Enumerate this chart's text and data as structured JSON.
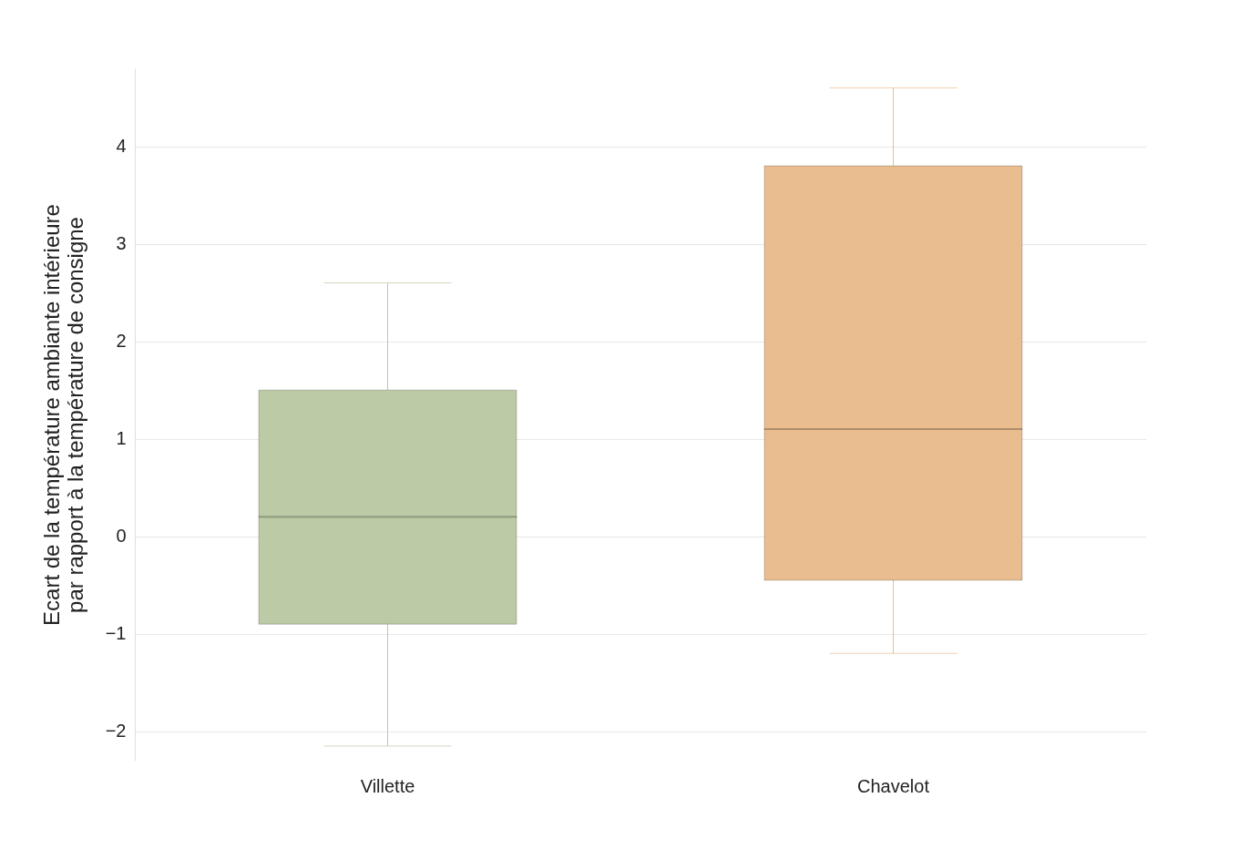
{
  "chart_data": {
    "type": "box",
    "ylabel": "Ecart de la température ambiante intérieure\npar rapport à la température de consigne",
    "categories": [
      "Villette",
      "Chavelot"
    ],
    "boxes": [
      {
        "low": -2.15,
        "q1": -0.9,
        "median": 0.2,
        "q3": 1.5,
        "high": 2.6
      },
      {
        "low": -1.2,
        "q1": -0.45,
        "median": 1.1,
        "q3": 3.8,
        "high": 4.6
      }
    ],
    "colors": [
      "#bccaa5",
      "#e9bd8f"
    ],
    "ylim": [
      -2.3,
      4.8
    ],
    "yticks": [
      -2,
      -1,
      0,
      1,
      2,
      3,
      4
    ],
    "grid": "y"
  }
}
